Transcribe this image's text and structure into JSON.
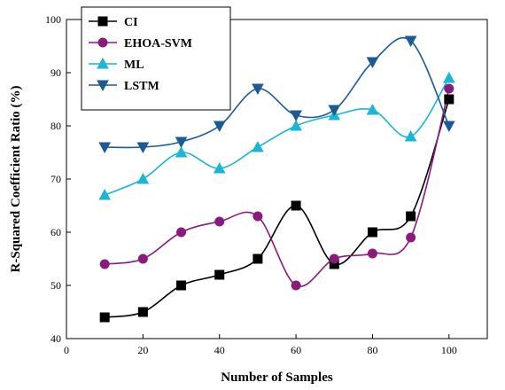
{
  "chart_data": {
    "type": "line",
    "xlabel": "Number of Samples",
    "ylabel": "R-Squared Coefficient Ratio (%)",
    "xlim": [
      0,
      110
    ],
    "ylim": [
      40,
      100
    ],
    "xticks": [
      0,
      20,
      40,
      60,
      80,
      100
    ],
    "yticks": [
      40,
      50,
      60,
      70,
      80,
      90,
      100
    ],
    "x": [
      10,
      20,
      30,
      40,
      50,
      60,
      70,
      80,
      90,
      100
    ],
    "grid": false,
    "legend_position": "top-left",
    "series": [
      {
        "name": "CI",
        "color": "#000000",
        "marker": "square",
        "values": [
          44,
          45,
          50,
          52,
          55,
          65,
          54,
          60,
          63,
          85
        ]
      },
      {
        "name": "EHOA-SVM",
        "color": "#8B1A7E",
        "marker": "circle",
        "values": [
          54,
          55,
          60,
          62,
          63,
          50,
          55,
          56,
          59,
          87
        ]
      },
      {
        "name": "ML",
        "color": "#1CB5D6",
        "marker": "triangle-up",
        "values": [
          67,
          70,
          75,
          72,
          76,
          80,
          82,
          83,
          78,
          89
        ]
      },
      {
        "name": "LSTM",
        "color": "#1C5A96",
        "marker": "triangle-down",
        "values": [
          76,
          76,
          77,
          80,
          87,
          82,
          83,
          92,
          96,
          80
        ]
      }
    ]
  }
}
